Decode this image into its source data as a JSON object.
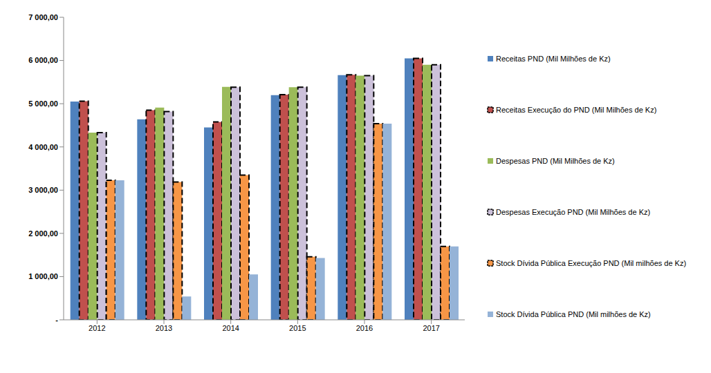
{
  "chart_data": {
    "type": "bar",
    "categories": [
      "2012",
      "2013",
      "2014",
      "2015",
      "2016",
      "2017"
    ],
    "series": [
      {
        "name": "Receitas PND (Mil Milhões de Kz)",
        "color": "#4F81BD",
        "line_style": "solid",
        "values": [
          5050,
          4640,
          4450,
          5200,
          5660,
          6050
        ]
      },
      {
        "name": "Receitas Execução do PND (Mil Milhões de Kz)",
        "color": "#C0504D",
        "line_style": "dashed",
        "values": [
          5060,
          4850,
          4580,
          5210,
          5670,
          6050
        ]
      },
      {
        "name": "Despesas PND (Mil Milhões de Kz)",
        "color": "#9BBB59",
        "line_style": "solid",
        "values": [
          4330,
          4910,
          5390,
          5380,
          5650,
          5900
        ]
      },
      {
        "name": "Despesas Execução PND (Mil Milhões de Kz)",
        "color": "#CCC1DA",
        "line_style": "dashed",
        "values": [
          4330,
          4820,
          5380,
          5380,
          5650,
          5900
        ]
      },
      {
        "name": "Stock Dívida Pública Execução PND (Mil milhões de Kz)",
        "color": "#F79646",
        "line_style": "dashed",
        "values": [
          3230,
          3190,
          3350,
          1460,
          4540,
          1700
        ]
      },
      {
        "name": "Stock Dívida Pública PND (Mil milhões de Kz)",
        "color": "#95B3D7",
        "line_style": "solid",
        "values": [
          3230,
          540,
          1050,
          1430,
          4540,
          1700
        ]
      }
    ],
    "ylim": [
      0,
      7000
    ],
    "yticks": [
      {
        "value": 0,
        "label": "-"
      },
      {
        "value": 1000,
        "label": "1 000,00"
      },
      {
        "value": 2000,
        "label": "2 000,00"
      },
      {
        "value": 3000,
        "label": "3 000,00"
      },
      {
        "value": 4000,
        "label": "4 000,00"
      },
      {
        "value": 5000,
        "label": "5 000,00"
      },
      {
        "value": 6000,
        "label": "6 000,00"
      },
      {
        "value": 7000,
        "label": "7 000,00"
      }
    ],
    "grid": false,
    "legend": "right"
  }
}
